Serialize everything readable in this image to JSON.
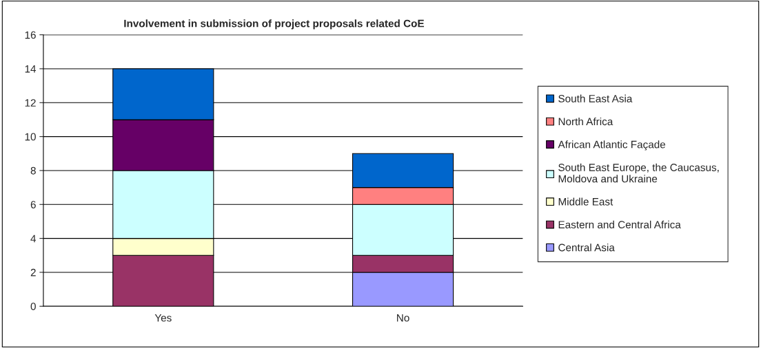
{
  "chart_data": {
    "type": "bar",
    "title": "Involvement in submission of project proposals related CoE",
    "categories": [
      "Yes",
      "No"
    ],
    "stacked": true,
    "ylim": [
      0,
      16
    ],
    "yticks": [
      0,
      2,
      4,
      6,
      8,
      10,
      12,
      14,
      16
    ],
    "grid": "y",
    "legend": "right",
    "series": [
      {
        "name": "Central Asia",
        "color": "#9999ff",
        "values": [
          0,
          2
        ]
      },
      {
        "name": "Eastern and Central Africa",
        "color": "#993366",
        "values": [
          3,
          1
        ]
      },
      {
        "name": "Middle East",
        "color": "#ffffcc",
        "values": [
          1,
          0
        ]
      },
      {
        "name": "South East Europe, the Caucasus,\nMoldova and Ukraine",
        "color": "#ccffff",
        "values": [
          4,
          3
        ]
      },
      {
        "name": "African Atlantic Façade",
        "color": "#660066",
        "values": [
          3,
          0
        ]
      },
      {
        "name": "North Africa",
        "color": "#ff8080",
        "values": [
          0,
          1
        ]
      },
      {
        "name": "South East Asia",
        "color": "#0066cc",
        "values": [
          3,
          2
        ]
      }
    ]
  }
}
